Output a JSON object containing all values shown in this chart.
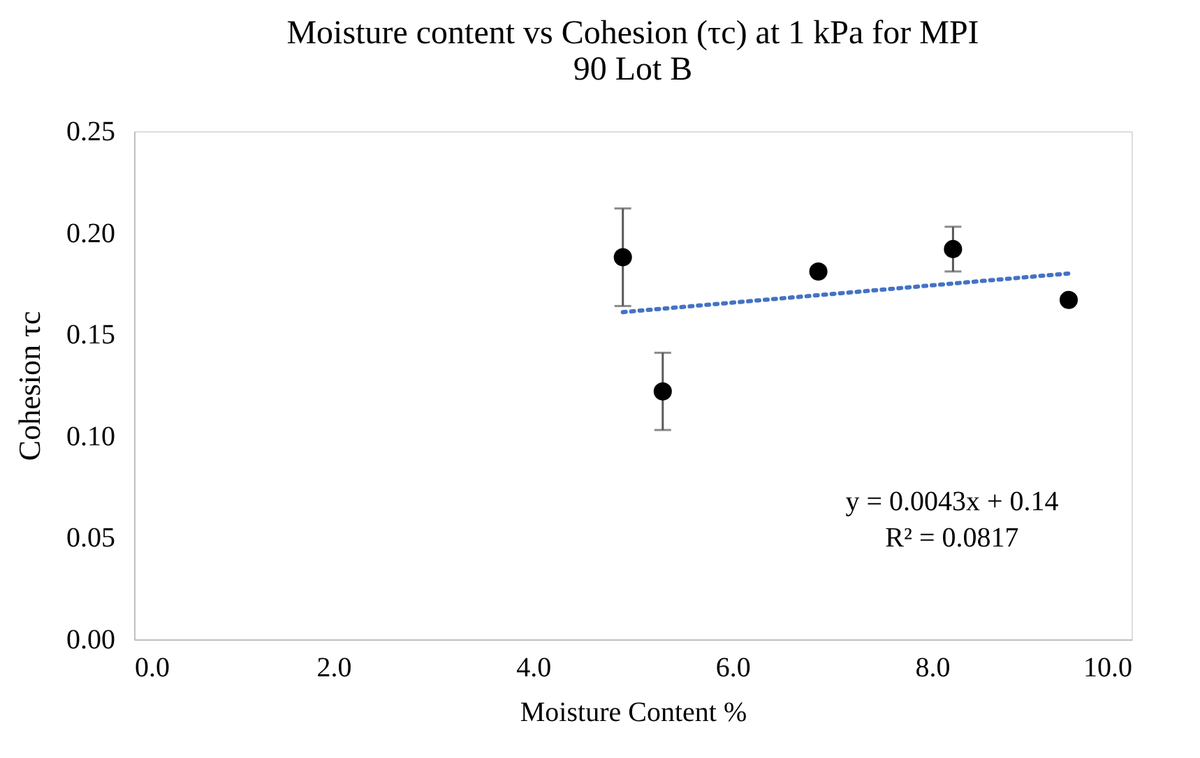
{
  "chart_data": {
    "type": "scatter",
    "title": "Moisture content vs Cohesion (τc) at 1 kPa for MPI 90 Lot B",
    "xlabel": "Moisture Content %",
    "ylabel": "Cohesion τc",
    "xlim": [
      0,
      10
    ],
    "xticks": [
      {
        "value": 0,
        "label": "0.0"
      },
      {
        "value": 2,
        "label": "2.0"
      },
      {
        "value": 4,
        "label": "4.0"
      },
      {
        "value": 6,
        "label": "6.0"
      },
      {
        "value": 8,
        "label": "8.0"
      },
      {
        "value": 10,
        "label": "10.0"
      }
    ],
    "ylim": [
      0,
      0.25
    ],
    "yticks": [
      {
        "value": 0,
        "label": "0.00"
      },
      {
        "value": 0.05,
        "label": "0.05"
      },
      {
        "value": 0.1,
        "label": "0.10"
      },
      {
        "value": 0.15,
        "label": "0.15"
      },
      {
        "value": 0.2,
        "label": "0.20"
      },
      {
        "value": 0.25,
        "label": "0.25"
      }
    ],
    "grid": false,
    "series": [
      {
        "marker": "circle",
        "color": "#000000",
        "x": [
          4.9,
          5.3,
          6.86,
          8.21,
          9.37
        ],
        "values": [
          0.188,
          0.122,
          0.181,
          0.192,
          0.167
        ],
        "errors": [
          0.024,
          0.019,
          null,
          0.011,
          null
        ]
      },
      {
        "type": "line",
        "color": "#4472c4",
        "line_style": "dotted",
        "x": [
          4.9,
          9.37
        ],
        "values": [
          0.161,
          0.18
        ]
      }
    ],
    "annotations": [
      "y = 0.0043x + 0.14",
      "R² = 0.0817"
    ]
  }
}
